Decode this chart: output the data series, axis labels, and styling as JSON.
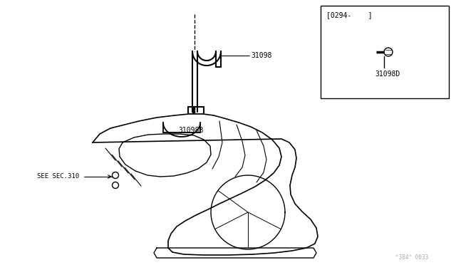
{
  "bg_color": "#ffffff",
  "line_color": "#000000",
  "inset_label": "[0294-    ]",
  "inset_part_label": "31098D",
  "label_31098": "31098",
  "label_31098B": "31098B",
  "label_see_sec": "SEE SEC.310",
  "watermark": "^384^ 0033"
}
